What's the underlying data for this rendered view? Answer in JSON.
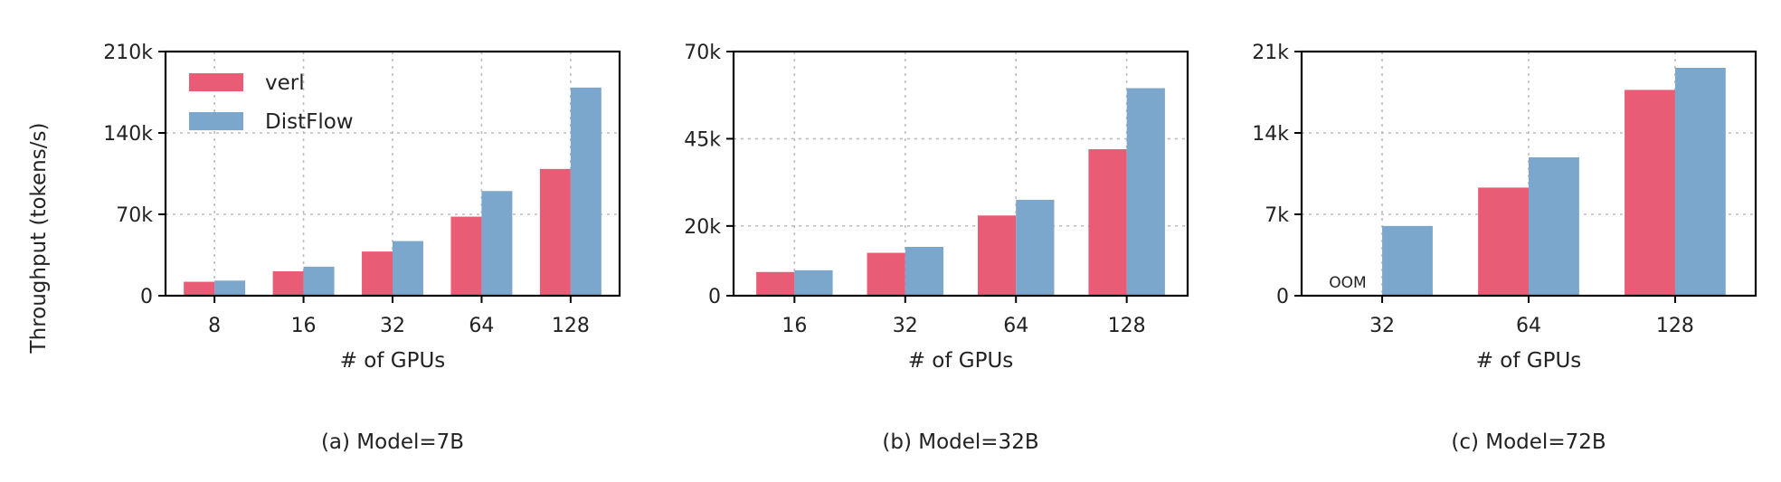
{
  "y_axis_label": "Throughput (tokens/s)",
  "legend": [
    {
      "label": "verl",
      "color": "#e85c75"
    },
    {
      "label": "DistFlow",
      "color": "#7ba7cc"
    }
  ],
  "chart_data": [
    {
      "type": "bar",
      "caption": "(a) Model=7B",
      "xlabel": "# of GPUs",
      "categories": [
        "8",
        "16",
        "32",
        "64",
        "128"
      ],
      "ylim": [
        0,
        210000
      ],
      "yticks": [
        0,
        70000,
        140000,
        210000
      ],
      "ytick_labels": [
        "0",
        "70k",
        "140k",
        "210k"
      ],
      "grid": true,
      "legend_position": "top-left",
      "series": [
        {
          "name": "verl",
          "values": [
            12000,
            21000,
            38000,
            68000,
            109000
          ]
        },
        {
          "name": "DistFlow",
          "values": [
            13000,
            25000,
            47000,
            90000,
            179000
          ]
        }
      ],
      "annotations": []
    },
    {
      "type": "bar",
      "caption": "(b) Model=32B",
      "xlabel": "# of GPUs",
      "categories": [
        "16",
        "32",
        "64",
        "128"
      ],
      "ylim": [
        0,
        70000
      ],
      "yticks": [
        0,
        20000,
        45000,
        70000
      ],
      "ytick_labels": [
        "0",
        "20k",
        "45k",
        "70k"
      ],
      "grid": true,
      "series": [
        {
          "name": "verl",
          "values": [
            6800,
            12300,
            23000,
            42000
          ]
        },
        {
          "name": "DistFlow",
          "values": [
            7300,
            14000,
            27500,
            59500
          ]
        }
      ],
      "annotations": []
    },
    {
      "type": "bar",
      "caption": "(c) Model=72B",
      "xlabel": "# of GPUs",
      "categories": [
        "32",
        "64",
        "128"
      ],
      "ylim": [
        0,
        21000
      ],
      "yticks": [
        0,
        7000,
        14000,
        21000
      ],
      "ytick_labels": [
        "0",
        "7k",
        "14k",
        "21k"
      ],
      "grid": true,
      "series": [
        {
          "name": "verl",
          "values": [
            null,
            9300,
            17700
          ]
        },
        {
          "name": "DistFlow",
          "values": [
            6000,
            11900,
            19600
          ]
        }
      ],
      "annotations": [
        {
          "text": "OOM",
          "category": "32",
          "series": "verl"
        }
      ]
    }
  ]
}
